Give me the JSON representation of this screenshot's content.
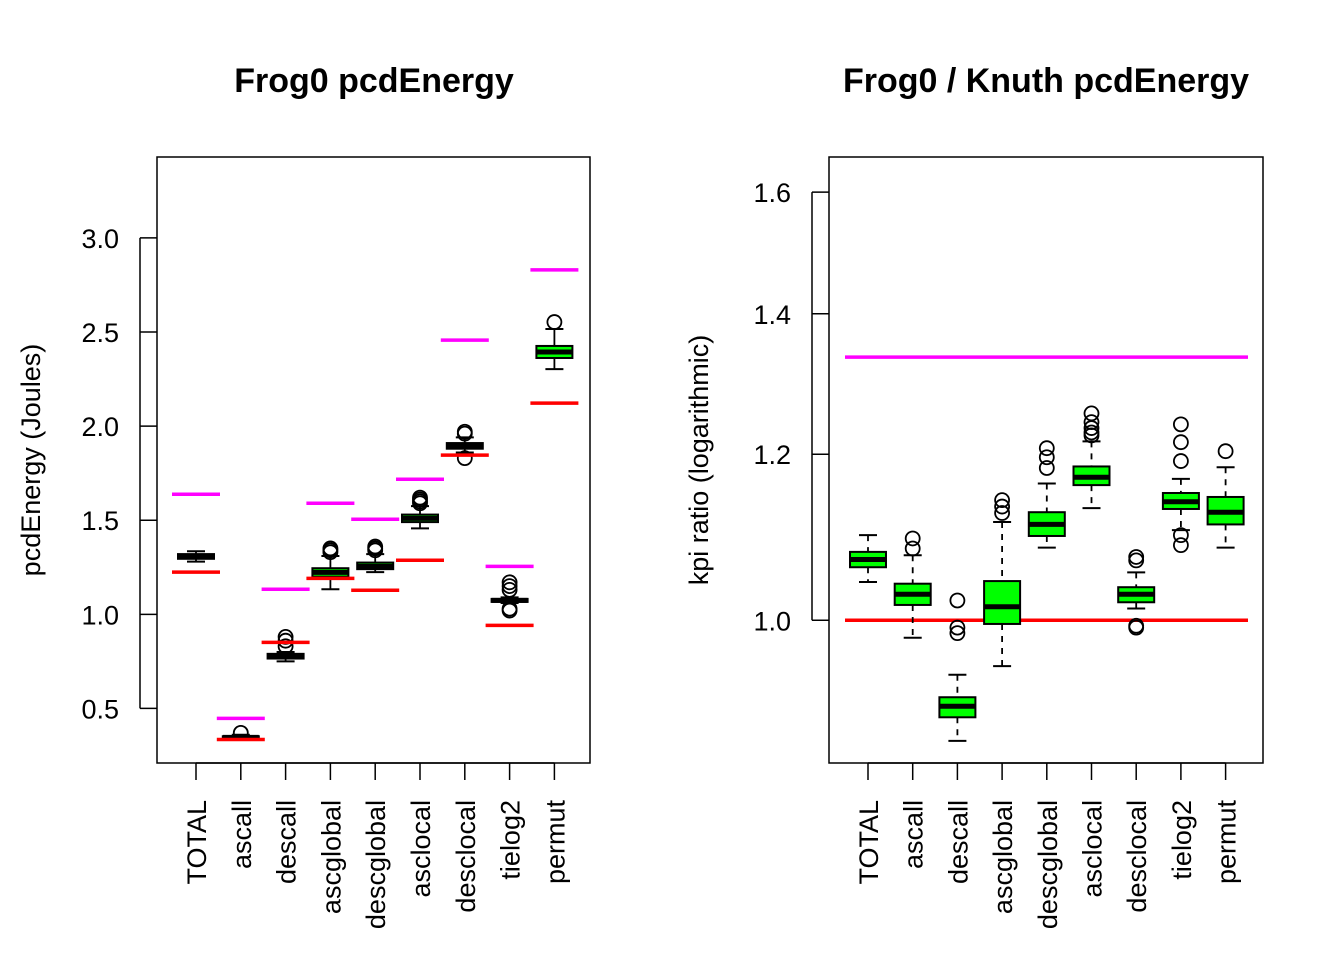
{
  "chart_data": [
    {
      "type": "box",
      "title": "Frog0 pcdEnergy",
      "xlabel": "",
      "ylabel": "pcdEnergy (Joules)",
      "scale": "linear",
      "ylim": [
        0.21,
        3.43
      ],
      "yticks": [
        0.5,
        1.0,
        1.5,
        2.0,
        2.5,
        3.0
      ],
      "ytick_labels": [
        "0.5",
        "1.0",
        "1.5",
        "2.0",
        "2.5",
        "3.0"
      ],
      "categories": [
        "TOTAL",
        "ascall",
        "descall",
        "ascglobal",
        "descglobal",
        "asclocal",
        "desclocal",
        "tielog2",
        "permut"
      ],
      "box_color": "#00ff00",
      "boxes": [
        {
          "wlo": 1.28,
          "q1": 1.295,
          "med": 1.31,
          "q3": 1.32,
          "whi": 1.335,
          "out": []
        },
        {
          "wlo": 0.335,
          "q1": 0.34,
          "med": 0.346,
          "q3": 0.352,
          "whi": 0.36,
          "out": [
            0.37
          ]
        },
        {
          "wlo": 0.75,
          "q1": 0.765,
          "med": 0.777,
          "q3": 0.79,
          "whi": 0.8,
          "out": [
            0.83,
            0.86,
            0.88
          ]
        },
        {
          "wlo": 1.133,
          "q1": 1.2,
          "med": 1.223,
          "q3": 1.245,
          "whi": 1.31,
          "out": [
            1.33,
            1.34,
            1.35
          ]
        },
        {
          "wlo": 1.224,
          "q1": 1.24,
          "med": 1.255,
          "q3": 1.275,
          "whi": 1.32,
          "out": [
            1.34,
            1.35,
            1.36
          ]
        },
        {
          "wlo": 1.457,
          "q1": 1.49,
          "med": 1.51,
          "q3": 1.53,
          "whi": 1.575,
          "out": [
            1.59,
            1.6,
            1.61,
            1.62
          ]
        },
        {
          "wlo": 1.86,
          "q1": 1.88,
          "med": 1.894,
          "q3": 1.91,
          "whi": 1.94,
          "out": [
            1.83,
            1.96,
            1.97
          ]
        },
        {
          "wlo": 1.06,
          "q1": 1.066,
          "med": 1.074,
          "q3": 1.082,
          "whi": 1.09,
          "out": [
            1.02,
            1.03,
            1.13,
            1.15,
            1.17
          ]
        },
        {
          "wlo": 2.303,
          "q1": 2.362,
          "med": 2.394,
          "q3": 2.426,
          "whi": 2.516,
          "out": [
            2.553
          ]
        }
      ],
      "reference_lines": {
        "upper": {
          "color": "#ff00ff",
          "values": [
            1.638,
            0.447,
            1.133,
            1.59,
            1.505,
            1.718,
            2.457,
            1.255,
            2.83
          ]
        },
        "lower": {
          "color": "#ff0000",
          "values": [
            1.224,
            0.335,
            0.851,
            1.191,
            1.128,
            1.287,
            1.846,
            0.941,
            2.122
          ]
        }
      }
    },
    {
      "type": "box",
      "title": "Frog0 / Knuth pcdEnergy",
      "xlabel": "",
      "ylabel": "kpi ratio (logarithmic)",
      "scale": "log",
      "ylim": [
        0.855,
        1.663
      ],
      "yticks": [
        1.0,
        1.2,
        1.4,
        1.6
      ],
      "ytick_labels": [
        "1.0",
        "1.2",
        "1.4",
        "1.6"
      ],
      "categories": [
        "TOTAL",
        "ascall",
        "descall",
        "ascglobal",
        "descglobal",
        "asclocal",
        "desclocal",
        "tielog2",
        "permut"
      ],
      "box_color": "#00ff00",
      "boxes": [
        {
          "wlo": 1.043,
          "q1": 1.06,
          "med": 1.069,
          "q3": 1.078,
          "whi": 1.098,
          "out": []
        },
        {
          "wlo": 0.981,
          "q1": 1.017,
          "med": 1.029,
          "q3": 1.041,
          "whi": 1.074,
          "out": [
            1.082,
            1.094
          ]
        },
        {
          "wlo": 0.876,
          "q1": 0.899,
          "med": 0.91,
          "q3": 0.919,
          "whi": 0.942,
          "out": [
            0.986,
            0.992,
            1.022
          ]
        },
        {
          "wlo": 0.951,
          "q1": 0.996,
          "med": 1.015,
          "q3": 1.044,
          "whi": 1.114,
          "out": [
            1.125,
            1.133,
            1.141
          ]
        },
        {
          "wlo": 1.083,
          "q1": 1.097,
          "med": 1.111,
          "q3": 1.126,
          "whi": 1.162,
          "out": [
            1.182,
            1.196,
            1.208
          ]
        },
        {
          "wlo": 1.131,
          "q1": 1.16,
          "med": 1.17,
          "q3": 1.184,
          "whi": 1.217,
          "out": [
            1.225,
            1.229,
            1.235,
            1.243,
            1.255
          ]
        },
        {
          "wlo": 1.013,
          "q1": 1.02,
          "med": 1.029,
          "q3": 1.037,
          "whi": 1.054,
          "out": [
            0.992,
            0.994,
            1.068,
            1.072
          ]
        },
        {
          "wlo": 1.104,
          "q1": 1.13,
          "med": 1.139,
          "q3": 1.15,
          "whi": 1.168,
          "out": [
            1.086,
            1.098,
            1.191,
            1.216,
            1.24
          ]
        },
        {
          "wlo": 1.083,
          "q1": 1.111,
          "med": 1.126,
          "q3": 1.145,
          "whi": 1.183,
          "out": [
            1.204
          ]
        }
      ],
      "reference_lines": {
        "upper": {
          "color": "#ff00ff",
          "value": 1.335
        },
        "lower": {
          "color": "#ff0000",
          "value": 1.0
        }
      }
    }
  ]
}
